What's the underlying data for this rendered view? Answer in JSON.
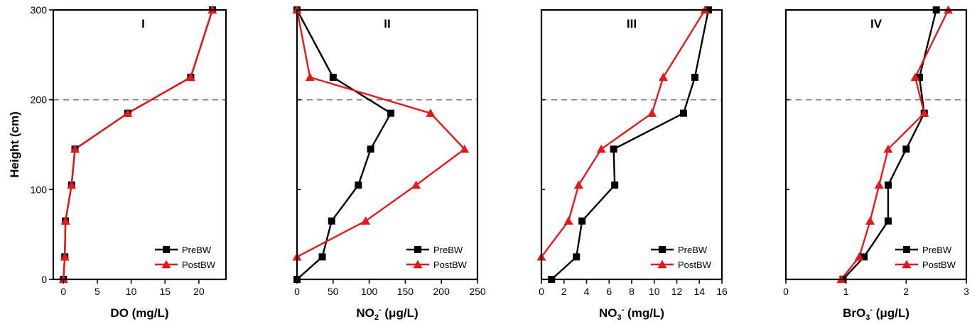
{
  "chart_data": [
    {
      "type": "line",
      "panel_label": "I",
      "xlabel_main": "DO (mg/L)",
      "xlabel_sup": "",
      "xlabel_tail": "",
      "ylabel": "Height (cm)",
      "xlim": [
        -1.5,
        24
      ],
      "ylim": [
        0,
        300
      ],
      "xticks": [
        0,
        5,
        10,
        15,
        20
      ],
      "yticks": [
        0,
        100,
        200,
        300
      ],
      "reference_line_y": 200,
      "legend": "bottom-right",
      "series": [
        {
          "name": "PreBW",
          "color": "#000000",
          "marker": "square",
          "points": [
            [
              0,
              0
            ],
            [
              0.2,
              25
            ],
            [
              0.3,
              65
            ],
            [
              1.2,
              105
            ],
            [
              1.7,
              145
            ],
            [
              9.5,
              185
            ],
            [
              18.8,
              225
            ],
            [
              22,
              300
            ]
          ]
        },
        {
          "name": "PostBW",
          "color": "#e31a1c",
          "marker": "triangle",
          "points": [
            [
              0,
              0
            ],
            [
              0.2,
              25
            ],
            [
              0.3,
              65
            ],
            [
              1.2,
              105
            ],
            [
              1.7,
              145
            ],
            [
              9.5,
              185
            ],
            [
              18.8,
              225
            ],
            [
              22,
              300
            ]
          ]
        }
      ]
    },
    {
      "type": "line",
      "panel_label": "II",
      "xlabel_main": "NO",
      "xlabel_sub": "2",
      "xlabel_sup": "-",
      "xlabel_tail": " (μg/L)",
      "xlim": [
        0,
        250
      ],
      "ylim": [
        0,
        300
      ],
      "xticks": [
        0,
        50,
        100,
        150,
        200,
        250
      ],
      "yticks": [
        0,
        100,
        200,
        300
      ],
      "reference_line_y": 200,
      "legend": "bottom-right",
      "series": [
        {
          "name": "PreBW",
          "color": "#000000",
          "marker": "square",
          "points": [
            [
              0,
              0
            ],
            [
              35,
              25
            ],
            [
              48,
              65
            ],
            [
              85,
              105
            ],
            [
              102,
              145
            ],
            [
              130,
              185
            ],
            [
              50,
              225
            ],
            [
              0,
              300
            ]
          ]
        },
        {
          "name": "PostBW",
          "color": "#e31a1c",
          "marker": "triangle",
          "points": [
            [
              0,
              25
            ],
            [
              95,
              65
            ],
            [
              165,
              105
            ],
            [
              232,
              145
            ],
            [
              185,
              185
            ],
            [
              18,
              225
            ],
            [
              0,
              300
            ]
          ]
        }
      ]
    },
    {
      "type": "line",
      "panel_label": "III",
      "xlabel_main": "NO",
      "xlabel_sub": "3",
      "xlabel_sup": "-",
      "xlabel_tail": " (mg/L)",
      "xlim": [
        0,
        16
      ],
      "ylim": [
        0,
        300
      ],
      "xticks": [
        0,
        2,
        4,
        6,
        8,
        10,
        12,
        14,
        16
      ],
      "yticks": [
        0,
        100,
        200,
        300
      ],
      "reference_line_y": 200,
      "legend": "bottom-right",
      "series": [
        {
          "name": "PreBW",
          "color": "#000000",
          "marker": "square",
          "points": [
            [
              0.9,
              0
            ],
            [
              3.1,
              25
            ],
            [
              3.6,
              65
            ],
            [
              6.5,
              105
            ],
            [
              6.4,
              145
            ],
            [
              12.6,
              185
            ],
            [
              13.6,
              225
            ],
            [
              14.8,
              300
            ]
          ]
        },
        {
          "name": "PostBW",
          "color": "#e31a1c",
          "marker": "triangle",
          "points": [
            [
              0,
              25
            ],
            [
              2.4,
              65
            ],
            [
              3.3,
              105
            ],
            [
              5.3,
              145
            ],
            [
              9.8,
              185
            ],
            [
              10.8,
              225
            ],
            [
              14.5,
              300
            ]
          ]
        }
      ]
    },
    {
      "type": "line",
      "panel_label": "IV",
      "xlabel_main": "BrO",
      "xlabel_sub": "3",
      "xlabel_sup": "-",
      "xlabel_tail": " (μg/L)",
      "xlim": [
        0,
        3
      ],
      "ylim": [
        0,
        300
      ],
      "xticks": [
        0,
        1,
        2,
        3
      ],
      "yticks": [
        0,
        100,
        200,
        300
      ],
      "reference_line_y": 200,
      "legend": "bottom-right",
      "series": [
        {
          "name": "PreBW",
          "color": "#000000",
          "marker": "square",
          "points": [
            [
              0.95,
              0
            ],
            [
              1.3,
              25
            ],
            [
              1.7,
              65
            ],
            [
              1.7,
              105
            ],
            [
              2.0,
              145
            ],
            [
              2.3,
              185
            ],
            [
              2.22,
              225
            ],
            [
              2.5,
              300
            ]
          ]
        },
        {
          "name": "PostBW",
          "color": "#e31a1c",
          "marker": "triangle",
          "points": [
            [
              0.92,
              0
            ],
            [
              1.22,
              25
            ],
            [
              1.4,
              65
            ],
            [
              1.55,
              105
            ],
            [
              1.7,
              145
            ],
            [
              2.3,
              185
            ],
            [
              2.15,
              225
            ],
            [
              2.7,
              300
            ]
          ]
        }
      ]
    }
  ]
}
